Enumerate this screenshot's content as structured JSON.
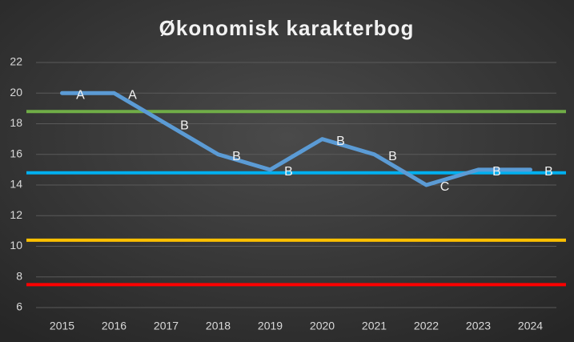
{
  "chart_data": {
    "type": "line",
    "title": "Økonomisk karakterbog",
    "categories": [
      "2015",
      "2016",
      "2017",
      "2018",
      "2019",
      "2020",
      "2021",
      "2022",
      "2023",
      "2024"
    ],
    "series": [
      {
        "color": "#5b9bd5",
        "values": [
          20,
          20,
          18,
          16,
          15,
          17,
          16,
          14,
          15,
          15
        ],
        "value_labels": [
          "A",
          "A",
          "B",
          "B",
          "B",
          "B",
          "B",
          "C",
          "B",
          "B"
        ]
      }
    ],
    "hlines": [
      {
        "value": 18.8,
        "color": "#70ad47"
      },
      {
        "value": 14.8,
        "color": "#00b0f0"
      },
      {
        "value": 10.4,
        "color": "#ffc000"
      },
      {
        "value": 7.5,
        "color": "#ff0000"
      }
    ],
    "ylim": [
      6,
      22
    ],
    "yticks": [
      6,
      8,
      10,
      12,
      14,
      16,
      18,
      20,
      22
    ],
    "grid": true
  }
}
